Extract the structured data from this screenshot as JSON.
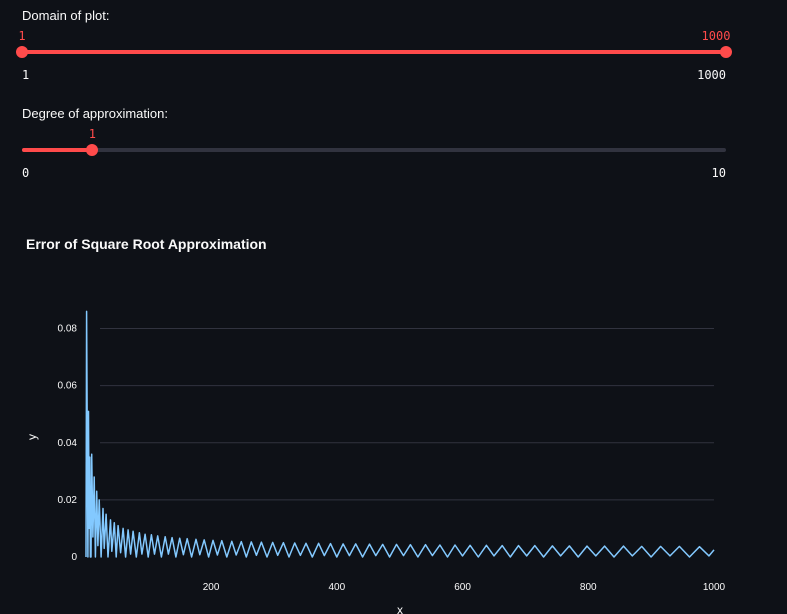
{
  "sliders": {
    "domain": {
      "label": "Domain of plot:",
      "min_label": "1",
      "max_label": "1000",
      "low_value": "1",
      "high_value": "1000",
      "min": 1,
      "max": 1000,
      "low": 1,
      "high": 1000
    },
    "degree": {
      "label": "Degree of approximation:",
      "min_label": "0",
      "max_label": "10",
      "value_label": "1",
      "min": 0,
      "max": 10,
      "value": 1
    }
  },
  "colors": {
    "accent": "#ff4b4b",
    "line": "#83c9ff",
    "background": "#0e1117",
    "grid": "#31333f"
  },
  "chart_data": {
    "type": "line",
    "title": "Error of Square Root Approximation",
    "xlabel": "x",
    "ylabel": "y",
    "xlim": [
      1,
      1000
    ],
    "ylim": [
      0,
      0.09
    ],
    "x_ticks": [
      "200",
      "400",
      "600",
      "800",
      "1000"
    ],
    "y_ticks": [
      "0",
      "0.02",
      "0.04",
      "0.06",
      "0.08"
    ],
    "x_tick_values": [
      200,
      400,
      600,
      800,
      1000
    ],
    "y_tick_values": [
      0,
      0.02,
      0.04,
      0.06,
      0.08
    ],
    "grid": true,
    "series": [
      {
        "x": [
          1,
          2,
          3,
          4,
          5,
          6,
          7,
          8,
          9,
          10,
          12,
          14,
          16,
          18,
          20,
          22,
          25,
          28,
          30,
          33,
          36,
          40,
          42,
          46,
          49,
          52,
          56,
          60,
          64,
          68,
          72,
          76,
          81,
          86,
          90,
          95,
          100,
          105,
          110,
          115,
          121,
          127,
          132,
          138,
          144,
          150,
          156,
          162,
          169,
          176,
          182,
          189,
          196,
          203,
          210,
          217,
          225,
          233,
          240,
          248,
          256,
          264,
          272,
          280,
          289,
          298,
          306,
          315,
          324,
          333,
          342,
          351,
          361,
          371,
          380,
          390,
          400,
          410,
          420,
          430,
          441,
          452,
          462,
          473,
          484,
          495,
          506,
          517,
          529,
          541,
          552,
          564,
          576,
          588,
          600,
          612,
          625,
          638,
          650,
          663,
          676,
          689,
          702,
          715,
          729,
          743,
          756,
          770,
          784,
          798,
          812,
          826,
          841,
          856,
          870,
          885,
          900,
          915,
          930,
          945,
          961,
          977,
          992,
          1000
        ],
        "y": [
          0,
          0.086,
          0.04,
          0,
          0.051,
          0.01,
          0.035,
          0,
          0,
          0.036,
          0.007,
          0.028,
          0,
          0.023,
          0.004,
          0.02,
          0,
          0.017,
          0.003,
          0.015,
          0,
          0.013,
          0.002,
          0.012,
          0,
          0.011,
          0.0015,
          0.01,
          0,
          0.0095,
          0.001,
          0.009,
          0,
          0.0085,
          0.001,
          0.008,
          0,
          0.0078,
          0.001,
          0.0074,
          0,
          0.0071,
          0.001,
          0.0068,
          0,
          0.0066,
          0.0008,
          0.0064,
          0,
          0.0062,
          0.0008,
          0.006,
          0,
          0.0058,
          0.0007,
          0.0057,
          0,
          0.0055,
          0.0007,
          0.0054,
          0,
          0.0053,
          0.0006,
          0.0052,
          0,
          0.0051,
          0.0006,
          0.005,
          0,
          0.0049,
          0.0006,
          0.0048,
          0,
          0.0048,
          0.0005,
          0.0047,
          0,
          0.0046,
          0.0005,
          0.0046,
          0,
          0.0045,
          0.0005,
          0.0044,
          0,
          0.0044,
          0.0005,
          0.0043,
          0,
          0.0043,
          0.0005,
          0.0042,
          0,
          0.0042,
          0.0004,
          0.0041,
          0,
          0.0041,
          0.0004,
          0.004,
          0,
          0.004,
          0.0004,
          0.004,
          0,
          0.0039,
          0.0004,
          0.0039,
          0,
          0.0038,
          0.0004,
          0.0038,
          0,
          0.0038,
          0.0004,
          0.0037,
          0,
          0.0037,
          0.0004,
          0.0037,
          0,
          0.0036,
          0.0004,
          0.0025
        ]
      }
    ]
  }
}
